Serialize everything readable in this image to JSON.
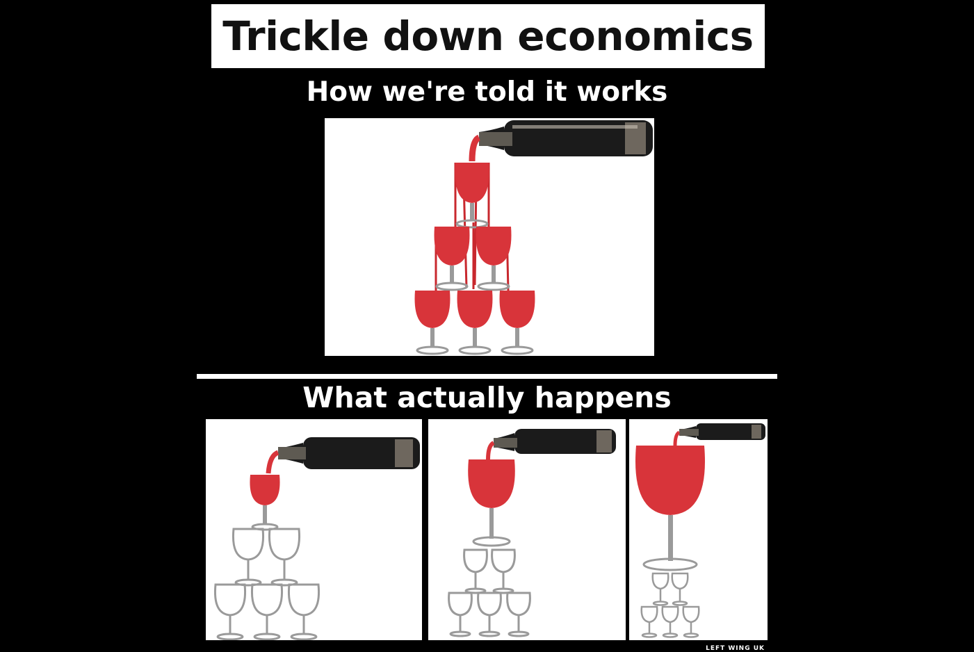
{
  "title": "Trickle down economics",
  "top_heading": "How we're told it works",
  "bottom_heading": "What actually happens",
  "credit": "LEFT WING UK",
  "colors": {
    "background": "#000000",
    "panel": "#ffffff",
    "wine": "#d8343a",
    "bottle": "#1a1a1a",
    "glass": "#9a9a9a"
  },
  "panels": [
    {
      "name": "told-panel",
      "wine_glasses": 6,
      "empty_glasses": 0
    },
    {
      "name": "actual-panel-1",
      "wine_glasses": 1,
      "empty_glasses": 5
    },
    {
      "name": "actual-panel-2",
      "wine_glasses": 1,
      "empty_glasses": 5
    },
    {
      "name": "actual-panel-3",
      "wine_glasses": 1,
      "empty_glasses": 5
    }
  ]
}
